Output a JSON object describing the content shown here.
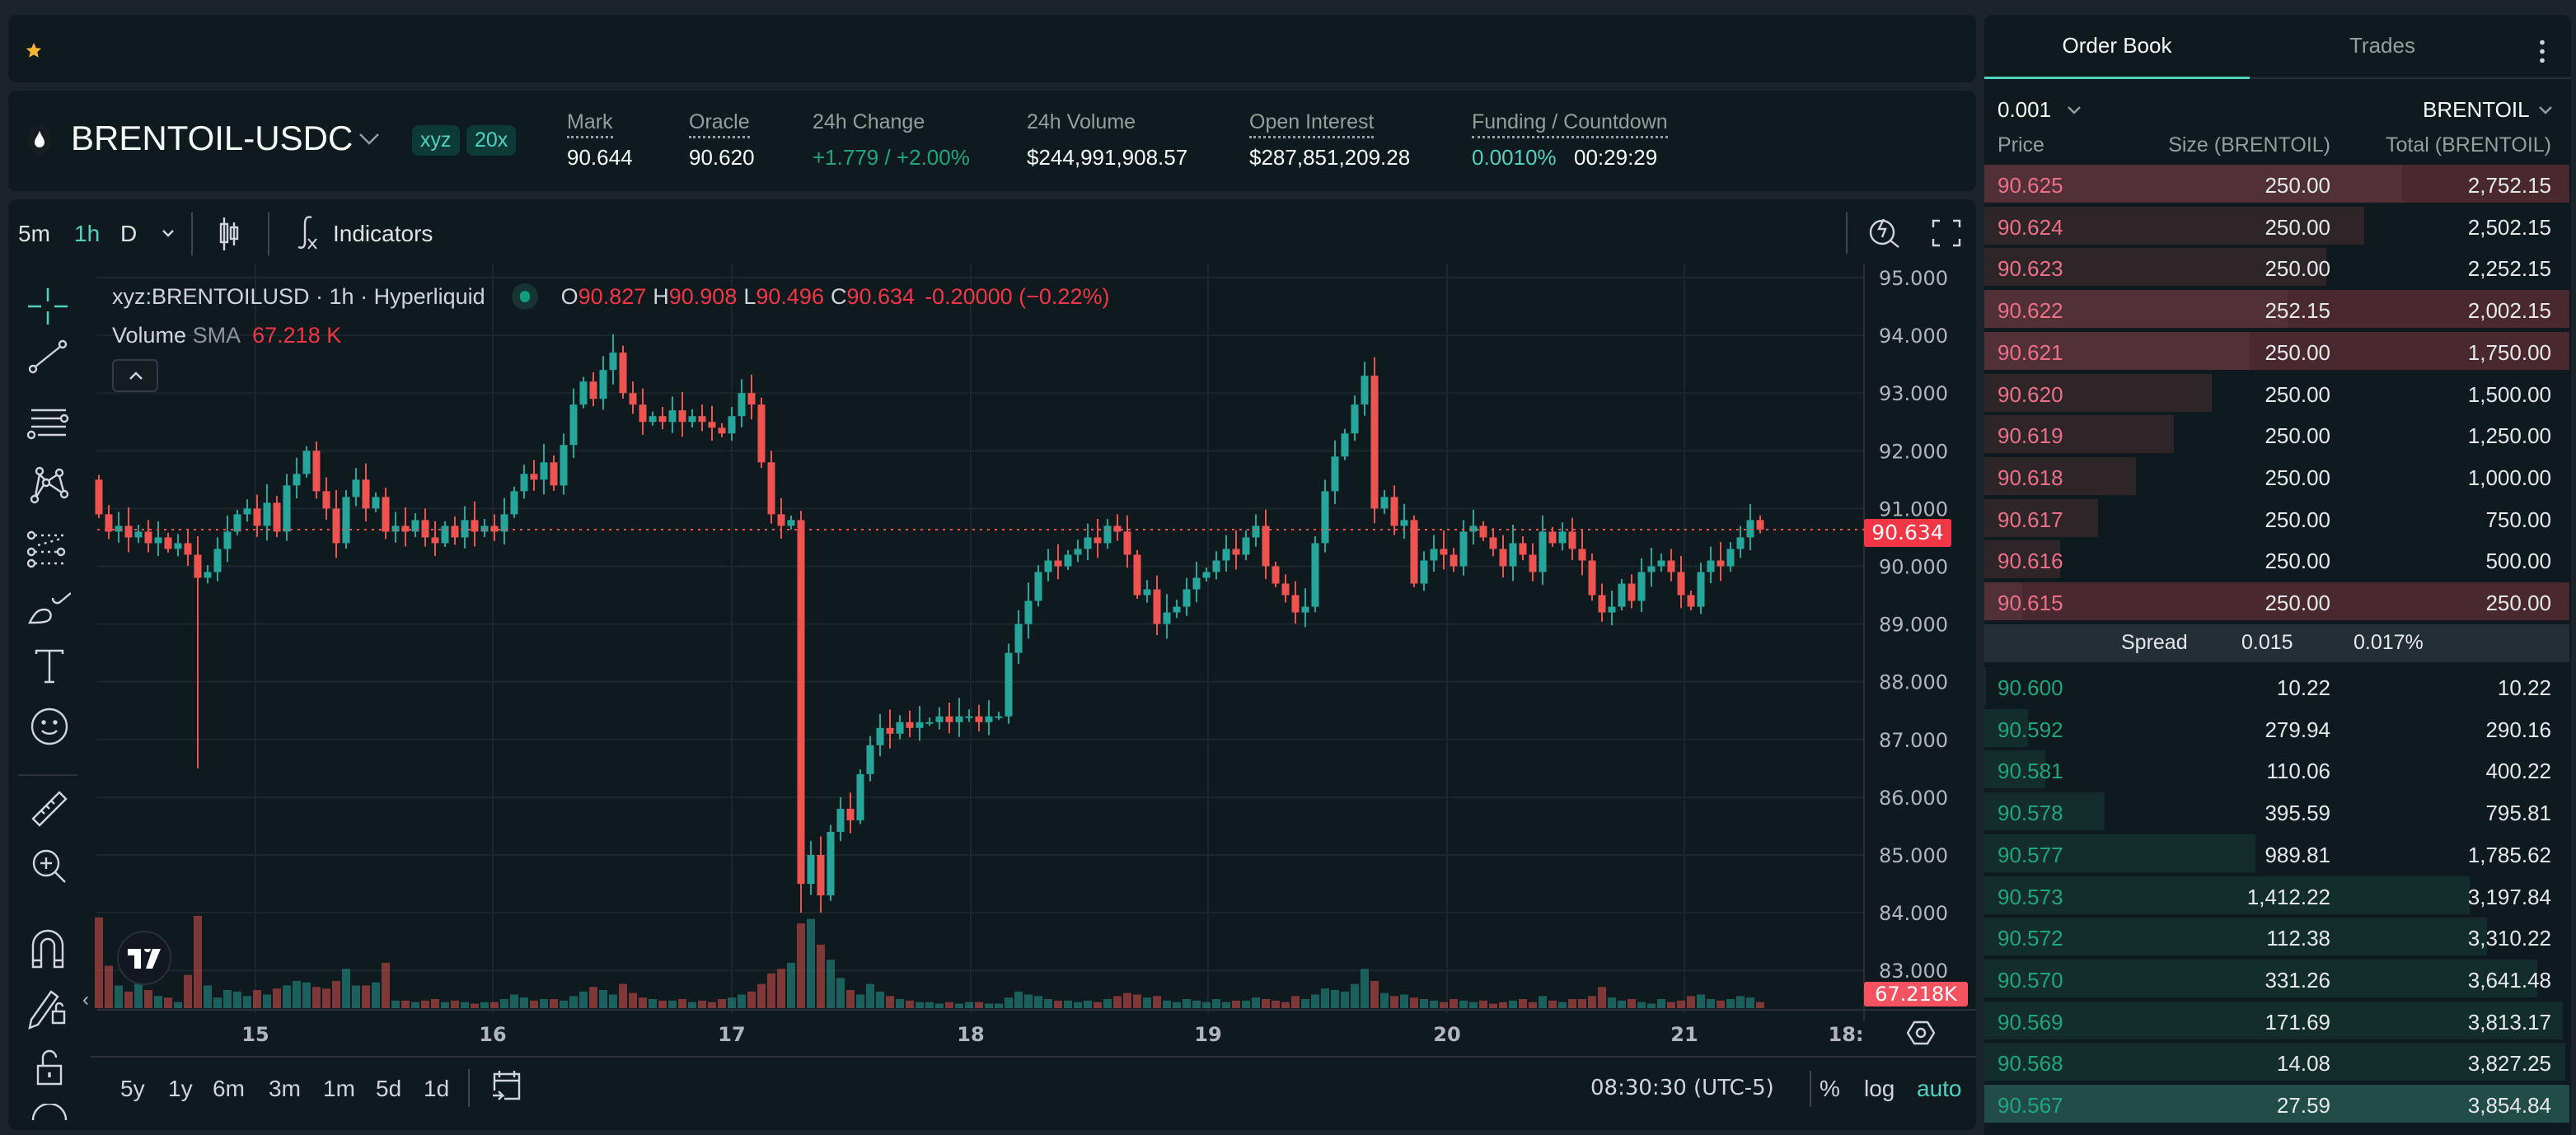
{
  "colors": {
    "accent": "#50d2c1",
    "ask": "#ed7088",
    "bid": "#1fa67d",
    "up": "#26a69a",
    "down": "#ef5350"
  },
  "topbar": {
    "favorite_icon": "star-icon"
  },
  "header": {
    "symbol": "BRENTOIL-USDC",
    "badge_dex": "xyz",
    "badge_leverage": "20x",
    "stats": [
      {
        "label": "Mark",
        "value": "90.644"
      },
      {
        "label": "Oracle",
        "value": "90.620"
      },
      {
        "label": "24h Change",
        "value": "+1.779 / +2.00%"
      },
      {
        "label": "24h Volume",
        "value": "$244,991,908.57"
      },
      {
        "label": "Open Interest",
        "value": "$287,851,209.28"
      },
      {
        "label": "Funding / Countdown",
        "value": "0.0010%",
        "value2": "00:29:29"
      }
    ]
  },
  "chart_toolbar": {
    "intervals": [
      "5m",
      "1h",
      "D"
    ],
    "active_interval": "1h",
    "indicators_label": "Indicators"
  },
  "legend": {
    "symbol_line": "xyz:BRENTOILUSD · 1h · Hyperliquid",
    "o_label": "O",
    "o": "90.827",
    "h_label": "H",
    "h": "90.908",
    "l_label": "L",
    "l": "90.496",
    "c_label": "C",
    "c": "90.634",
    "change": "-0.20000 (−0.22%)",
    "volume_label": "Volume",
    "sma_label": "SMA",
    "sma_value": "67.218 K"
  },
  "chart_data": {
    "type": "candlestick",
    "interval": "1h",
    "ylim": [
      82.5,
      95.5
    ],
    "y_ticks": [
      "95.000",
      "94.000",
      "93.000",
      "92.000",
      "91.000",
      "90.000",
      "89.000",
      "88.000",
      "87.000",
      "86.000",
      "85.000",
      "84.000",
      "83.000"
    ],
    "x_ticks": [
      "15",
      "16",
      "17",
      "18",
      "19",
      "20",
      "21",
      "18:"
    ],
    "last_price": "90.634",
    "last_volume": "67.218K",
    "first_open": 91.5,
    "closes": [
      90.9,
      90.6,
      90.7,
      90.5,
      90.6,
      90.4,
      90.5,
      90.3,
      90.4,
      90.2,
      89.8,
      89.9,
      90.3,
      90.6,
      90.9,
      91.0,
      90.7,
      91.1,
      90.6,
      91.4,
      91.6,
      92.0,
      91.3,
      91.0,
      90.4,
      91.2,
      91.5,
      91.0,
      91.2,
      90.6,
      90.7,
      90.6,
      90.8,
      90.5,
      90.4,
      90.7,
      90.5,
      90.8,
      90.6,
      90.7,
      90.6,
      90.9,
      91.3,
      91.6,
      91.5,
      91.8,
      91.4,
      92.1,
      92.8,
      93.2,
      92.9,
      93.4,
      93.7,
      93.0,
      92.8,
      92.5,
      92.6,
      92.5,
      92.7,
      92.5,
      92.6,
      92.5,
      92.4,
      92.3,
      92.6,
      93.0,
      92.8,
      91.8,
      90.9,
      90.7,
      90.8,
      84.5,
      85.0,
      84.3,
      85.4,
      85.8,
      85.6,
      86.4,
      86.9,
      87.2,
      87.1,
      87.3,
      87.2,
      87.3,
      87.3,
      87.4,
      87.3,
      87.4,
      87.4,
      87.3,
      87.4,
      87.4,
      88.5,
      89.0,
      89.4,
      89.9,
      90.1,
      90.0,
      90.2,
      90.3,
      90.5,
      90.4,
      90.7,
      90.6,
      90.2,
      89.5,
      89.6,
      89.0,
      89.2,
      89.3,
      89.6,
      89.8,
      89.9,
      90.1,
      90.3,
      90.2,
      90.5,
      90.7,
      90.0,
      89.7,
      89.5,
      89.2,
      89.3,
      90.4,
      91.3,
      91.9,
      92.3,
      92.8,
      93.3,
      91.0,
      91.2,
      90.7,
      90.8,
      89.7,
      90.1,
      90.3,
      90.2,
      90.0,
      90.6,
      90.7,
      90.5,
      90.3,
      90.0,
      90.4,
      90.2,
      89.9,
      90.6,
      90.4,
      90.6,
      90.3,
      90.1,
      89.5,
      89.2,
      89.3,
      89.7,
      89.4,
      89.9,
      90.0,
      90.1,
      89.9,
      89.5,
      89.3,
      89.9,
      90.1,
      90.0,
      90.3,
      90.5,
      90.8,
      90.634
    ],
    "low_overrides": {
      "10": 86.5,
      "71": 84.0,
      "73": 84.0
    },
    "volumes_k": [
      600,
      280,
      150,
      110,
      160,
      120,
      80,
      70,
      40,
      220,
      610,
      150,
      70,
      120,
      110,
      80,
      120,
      90,
      130,
      150,
      180,
      170,
      140,
      130,
      180,
      260,
      150,
      150,
      170,
      300,
      50,
      50,
      40,
      50,
      60,
      40,
      50,
      40,
      30,
      40,
      40,
      60,
      90,
      70,
      50,
      60,
      60,
      50,
      80,
      110,
      140,
      120,
      90,
      160,
      100,
      70,
      60,
      50,
      50,
      60,
      40,
      50,
      40,
      60,
      70,
      90,
      110,
      160,
      230,
      260,
      300,
      560,
      590,
      420,
      320,
      200,
      120,
      90,
      160,
      110,
      80,
      60,
      50,
      40,
      40,
      30,
      40,
      30,
      40,
      40,
      30,
      30,
      70,
      110,
      90,
      80,
      60,
      50,
      50,
      40,
      50,
      40,
      60,
      80,
      100,
      90,
      70,
      80,
      50,
      40,
      60,
      50,
      40,
      60,
      40,
      50,
      50,
      70,
      60,
      50,
      40,
      80,
      60,
      90,
      130,
      120,
      110,
      160,
      260,
      180,
      100,
      80,
      90,
      70,
      60,
      50,
      40,
      60,
      50,
      40,
      50,
      30,
      40,
      50,
      60,
      40,
      80,
      50,
      40,
      60,
      60,
      80,
      140,
      70,
      50,
      60,
      40,
      30,
      60,
      40,
      50,
      80,
      90,
      60,
      50,
      60,
      80,
      70,
      40
    ]
  },
  "right_axis": {
    "settings_icon": "gear-icon"
  },
  "bottom_bar": {
    "ranges": [
      "5y",
      "1y",
      "6m",
      "3m",
      "1m",
      "5d",
      "1d"
    ],
    "time": "08:30:30 (UTC-5)",
    "percent": "%",
    "log": "log",
    "auto": "auto"
  },
  "orderbook": {
    "tabs": [
      "Order Book",
      "Trades"
    ],
    "active_tab": "Order Book",
    "tick_size": "0.001",
    "unit": "BRENTOIL",
    "col_price": "Price",
    "col_size": "Size (BRENTOIL)",
    "col_total": "Total (BRENTOIL)",
    "max_total": 3854.84,
    "asks": [
      {
        "price": "90.625",
        "size": "250.00",
        "total": "2,752.15",
        "t": 2752.15,
        "flash": true
      },
      {
        "price": "90.624",
        "size": "250.00",
        "total": "2,502.15",
        "t": 2502.15,
        "flash": false
      },
      {
        "price": "90.623",
        "size": "250.00",
        "total": "2,252.15",
        "t": 2252.15,
        "flash": false
      },
      {
        "price": "90.622",
        "size": "252.15",
        "total": "2,002.15",
        "t": 2002.15,
        "flash": true
      },
      {
        "price": "90.621",
        "size": "250.00",
        "total": "1,750.00",
        "t": 1750,
        "flash": true
      },
      {
        "price": "90.620",
        "size": "250.00",
        "total": "1,500.00",
        "t": 1500,
        "flash": false
      },
      {
        "price": "90.619",
        "size": "250.00",
        "total": "1,250.00",
        "t": 1250,
        "flash": false
      },
      {
        "price": "90.618",
        "size": "250.00",
        "total": "1,000.00",
        "t": 1000,
        "flash": false
      },
      {
        "price": "90.617",
        "size": "250.00",
        "total": "750.00",
        "t": 750,
        "flash": false
      },
      {
        "price": "90.616",
        "size": "250.00",
        "total": "500.00",
        "t": 500,
        "flash": false
      },
      {
        "price": "90.615",
        "size": "250.00",
        "total": "250.00",
        "t": 250,
        "flash": true
      }
    ],
    "spread_label": "Spread",
    "spread_value": "0.015",
    "spread_pct": "0.017%",
    "bids": [
      {
        "price": "90.600",
        "size": "10.22",
        "total": "10.22",
        "t": 10.22,
        "flash": false
      },
      {
        "price": "90.592",
        "size": "279.94",
        "total": "290.16",
        "t": 290.16,
        "flash": false
      },
      {
        "price": "90.581",
        "size": "110.06",
        "total": "400.22",
        "t": 400.22,
        "flash": false
      },
      {
        "price": "90.578",
        "size": "395.59",
        "total": "795.81",
        "t": 795.81,
        "flash": false
      },
      {
        "price": "90.577",
        "size": "989.81",
        "total": "1,785.62",
        "t": 1785.62,
        "flash": false
      },
      {
        "price": "90.573",
        "size": "1,412.22",
        "total": "3,197.84",
        "t": 3197.84,
        "flash": false
      },
      {
        "price": "90.572",
        "size": "112.38",
        "total": "3,310.22",
        "t": 3310.22,
        "flash": false
      },
      {
        "price": "90.570",
        "size": "331.26",
        "total": "3,641.48",
        "t": 3641.48,
        "flash": false
      },
      {
        "price": "90.569",
        "size": "171.69",
        "total": "3,813.17",
        "t": 3813.17,
        "flash": false
      },
      {
        "price": "90.568",
        "size": "14.08",
        "total": "3,827.25",
        "t": 3827.25,
        "flash": false
      },
      {
        "price": "90.567",
        "size": "27.59",
        "total": "3,854.84",
        "t": 3854.84,
        "flash": true
      }
    ]
  }
}
